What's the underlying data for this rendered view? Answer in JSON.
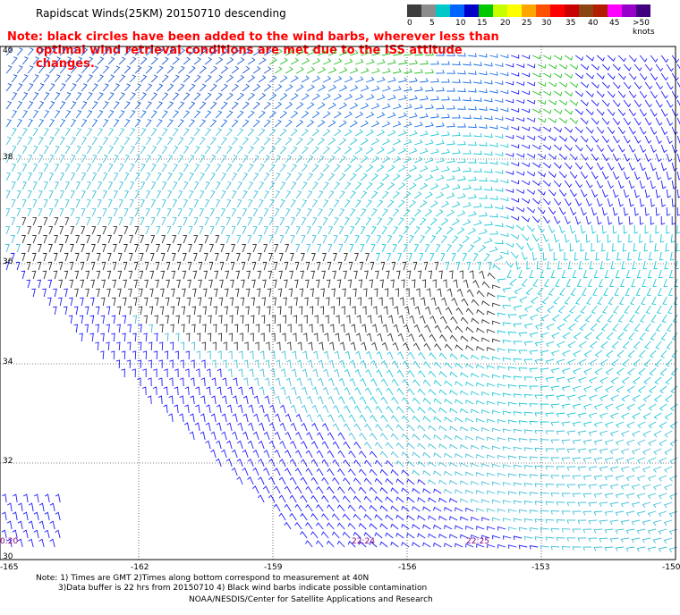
{
  "title": "Rapidscat Winds(25KM) 20150710 descending",
  "note_line1": "Note: black circles have been added to the wind barbs, wherever less than",
  "note_line2": "optimal wind retrieval conditions are met due to the ISS attitude changes.",
  "colorbar": {
    "labels": [
      "0",
      "5",
      "10",
      "15",
      "20",
      "25",
      "30",
      "35",
      "40",
      "45",
      ">50 knots"
    ],
    "colors": [
      "#3c3c3c",
      "#8c8c8c",
      "#00c8c8",
      "#0064ff",
      "#0000c8",
      "#00c800",
      "#c8ff00",
      "#ffff00",
      "#ffa500",
      "#ff5000",
      "#ff0000",
      "#c80000",
      "#8b4513",
      "#b41e00",
      "#ff00ff",
      "#9600c8",
      "#400080"
    ]
  },
  "lat_labels": [
    "40",
    "38",
    "36",
    "34",
    "32",
    "30"
  ],
  "lon_labels": [
    "-165",
    "-162",
    "-159",
    "-156",
    "-153",
    "-150"
  ],
  "time_labels": [
    "0:20",
    "22:24",
    "22:25"
  ],
  "footnote_line1": "Note: 1) Times are GMT 2)Times along bottom correspond to measurement at 40N",
  "footnote_line2": "3)Data buffer is 22 hrs from 20150710 4) Black wind barbs indicate possible contamination",
  "credit": "NOAA/NESDIS/Center for Satellite Applications and Research"
}
